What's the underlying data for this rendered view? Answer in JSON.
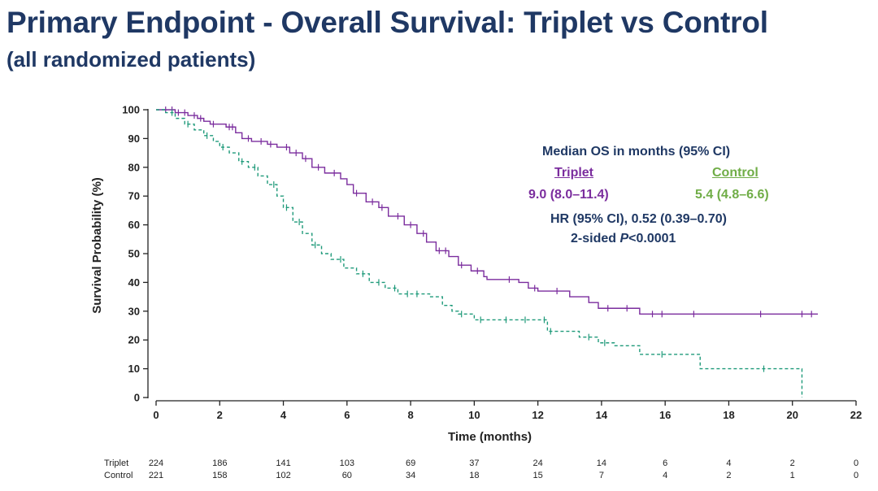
{
  "slide": {
    "title": "Primary Endpoint - Overall Survival: Triplet vs Control",
    "subtitle": "(all randomized patients)"
  },
  "colors": {
    "title": "#1f3864",
    "triplet": "#7b2d9e",
    "control": "#1f9a7a",
    "control_label": "#70ad47",
    "axis": "#222222"
  },
  "chart_data": {
    "type": "line",
    "title": "",
    "xlabel": "Time (months)",
    "ylabel": "Survival Probability (%)",
    "xlim": [
      0,
      22
    ],
    "ylim": [
      0,
      100
    ],
    "x_ticks": [
      0,
      2,
      4,
      6,
      8,
      10,
      12,
      14,
      16,
      18,
      20,
      22
    ],
    "y_ticks": [
      0,
      10,
      20,
      30,
      40,
      50,
      60,
      70,
      80,
      90,
      100
    ],
    "grid": false,
    "series": [
      {
        "name": "Triplet",
        "step": true,
        "line_style": "solid",
        "points": [
          [
            0,
            100
          ],
          [
            0.4,
            100
          ],
          [
            0.6,
            99
          ],
          [
            1.0,
            98
          ],
          [
            1.3,
            97
          ],
          [
            1.5,
            96
          ],
          [
            1.7,
            95
          ],
          [
            2.2,
            94
          ],
          [
            2.5,
            92
          ],
          [
            2.7,
            90
          ],
          [
            3.0,
            89
          ],
          [
            3.5,
            88
          ],
          [
            3.8,
            87
          ],
          [
            4.2,
            85
          ],
          [
            4.6,
            83
          ],
          [
            4.9,
            80
          ],
          [
            5.3,
            78
          ],
          [
            5.8,
            76
          ],
          [
            6.0,
            74
          ],
          [
            6.2,
            71
          ],
          [
            6.6,
            68
          ],
          [
            7.0,
            66
          ],
          [
            7.3,
            63
          ],
          [
            7.8,
            60
          ],
          [
            8.2,
            57
          ],
          [
            8.5,
            54
          ],
          [
            8.8,
            51
          ],
          [
            9.2,
            49
          ],
          [
            9.5,
            46
          ],
          [
            9.9,
            44
          ],
          [
            10.3,
            42
          ],
          [
            10.4,
            41
          ],
          [
            11.4,
            40
          ],
          [
            11.7,
            38
          ],
          [
            12.0,
            37
          ],
          [
            13.0,
            35
          ],
          [
            13.6,
            33
          ],
          [
            13.9,
            31
          ],
          [
            15.2,
            29
          ],
          [
            16.0,
            29
          ],
          [
            20.8,
            29
          ]
        ],
        "censor": [
          0.3,
          0.5,
          0.7,
          0.9,
          1.2,
          1.4,
          1.8,
          2.3,
          2.4,
          2.9,
          3.3,
          3.6,
          4.1,
          4.4,
          4.7,
          5.1,
          5.6,
          6.3,
          6.8,
          7.1,
          7.6,
          8.0,
          8.4,
          8.9,
          9.1,
          9.6,
          10.1,
          11.1,
          11.9,
          12.6,
          14.2,
          14.8,
          15.6,
          15.9,
          16.9,
          19.0,
          20.3,
          20.6
        ]
      },
      {
        "name": "Control",
        "step": true,
        "line_style": "dashed",
        "points": [
          [
            0,
            100
          ],
          [
            0.3,
            99
          ],
          [
            0.6,
            97
          ],
          [
            0.9,
            95
          ],
          [
            1.2,
            93
          ],
          [
            1.5,
            91
          ],
          [
            1.8,
            89
          ],
          [
            2.0,
            87
          ],
          [
            2.3,
            85
          ],
          [
            2.6,
            82
          ],
          [
            2.9,
            80
          ],
          [
            3.2,
            77
          ],
          [
            3.5,
            74
          ],
          [
            3.8,
            70
          ],
          [
            4.0,
            66
          ],
          [
            4.3,
            61
          ],
          [
            4.6,
            57
          ],
          [
            4.9,
            53
          ],
          [
            5.2,
            50
          ],
          [
            5.5,
            48
          ],
          [
            5.9,
            45
          ],
          [
            6.3,
            43
          ],
          [
            6.7,
            40
          ],
          [
            7.2,
            38
          ],
          [
            7.6,
            36
          ],
          [
            8.6,
            35
          ],
          [
            9.0,
            32
          ],
          [
            9.3,
            30
          ],
          [
            9.5,
            29
          ],
          [
            10.0,
            27
          ],
          [
            12.0,
            27
          ],
          [
            12.3,
            23
          ],
          [
            13.3,
            21
          ],
          [
            13.9,
            19
          ],
          [
            14.4,
            18
          ],
          [
            15.2,
            15
          ],
          [
            17.1,
            10
          ],
          [
            20.3,
            10
          ],
          [
            20.3,
            0
          ]
        ],
        "censor": [
          0.5,
          1.0,
          1.6,
          2.1,
          2.7,
          3.1,
          3.7,
          4.1,
          4.5,
          5.0,
          5.8,
          6.5,
          7.0,
          7.5,
          7.9,
          8.2,
          9.6,
          10.2,
          11.0,
          11.6,
          12.2,
          12.4,
          13.6,
          14.1,
          15.9,
          19.1
        ]
      }
    ],
    "legend": {
      "heading": "Median OS in months (95% CI)",
      "triplet_label": "Triplet",
      "triplet_value": "9.0 (8.0–11.4)",
      "control_label": "Control",
      "control_value": "5.4 (4.8–6.6)",
      "hr_line": "HR (95% CI), 0.52 (0.39–0.70)",
      "p_prefix": "2-sided ",
      "p_italic": "P",
      "p_value": "<0.0001"
    },
    "at_risk": {
      "times": [
        0,
        2,
        4,
        6,
        8,
        10,
        12,
        14,
        16,
        18,
        20,
        22
      ],
      "rows": [
        {
          "label": "Triplet",
          "counts": [
            "224",
            "186",
            "141",
            "103",
            "69",
            "37",
            "24",
            "14",
            "6",
            "4",
            "2",
            "0"
          ]
        },
        {
          "label": "Control",
          "counts": [
            "221",
            "158",
            "102",
            "60",
            "34",
            "18",
            "15",
            "7",
            "4",
            "2",
            "1",
            "0"
          ]
        }
      ]
    }
  }
}
